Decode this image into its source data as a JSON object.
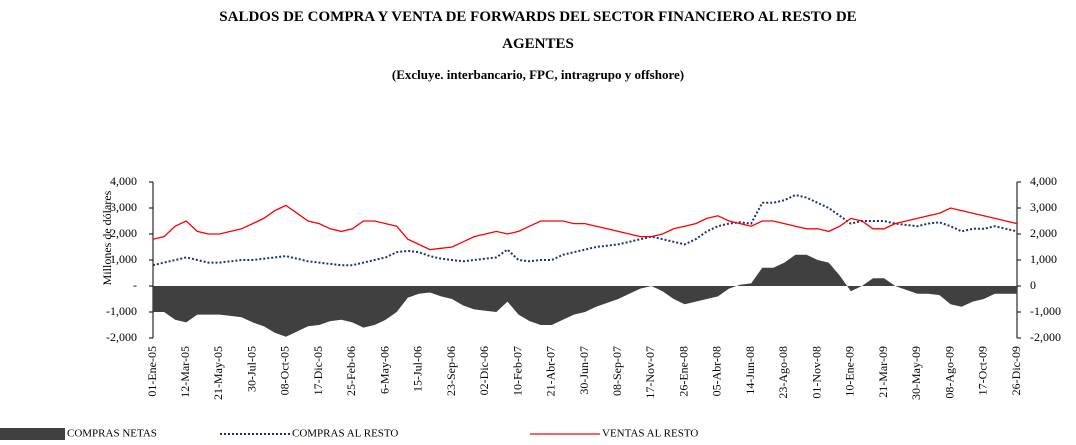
{
  "chart_data": {
    "type": "line",
    "title": "SALDOS DE COMPRA Y VENTA DE FORWARDS DEL SECTOR FINANCIERO AL RESTO DE AGENTES",
    "subtitle": "(Excluye. interbancario, FPC, intragrupo y offshore)",
    "y_label": "Millones de dólares",
    "categories": [
      "01-Ene-05",
      null,
      null,
      "12-Mar-05",
      null,
      null,
      "21-May-05",
      null,
      null,
      "30-Jul-05",
      null,
      null,
      "08-Oct-05",
      null,
      null,
      "17-Dic-05",
      null,
      null,
      "25-Feb-06",
      null,
      null,
      "6-May-06",
      null,
      null,
      "15-Jul-06",
      null,
      null,
      "23-Sep-06",
      null,
      null,
      "02-Dic-06",
      null,
      null,
      "10-Feb-07",
      null,
      null,
      "21-Abr-07",
      null,
      null,
      "30-Jun-07",
      null,
      null,
      "08-Sep-07",
      null,
      null,
      "17-Nov-07",
      null,
      null,
      "26-Ene-08",
      null,
      null,
      "05-Abr-08",
      null,
      null,
      "14-Jun-08",
      null,
      null,
      "23-Ago-08",
      null,
      null,
      "01-Nov-08",
      null,
      null,
      "10-Ene-09",
      null,
      null,
      "21-Mar-09",
      null,
      null,
      "30-May-09",
      null,
      null,
      "08-Ago-09",
      null,
      null,
      "17-Oct-09",
      null,
      null,
      "26-Dic-09"
    ],
    "series": [
      {
        "name": "COMPRAS NETAS",
        "kind": "area",
        "color": "#404040",
        "values": [
          -1000,
          -1000,
          -1300,
          -1400,
          -1100,
          -1100,
          -1100,
          -1150,
          -1200,
          -1400,
          -1550,
          -1800,
          -1950,
          -1750,
          -1550,
          -1500,
          -1350,
          -1300,
          -1400,
          -1600,
          -1500,
          -1300,
          -1000,
          -450,
          -300,
          -250,
          -400,
          -500,
          -750,
          -900,
          -950,
          -1000,
          -600,
          -1100,
          -1350,
          -1500,
          -1500,
          -1300,
          -1100,
          -1000,
          -800,
          -650,
          -500,
          -300,
          -100,
          0,
          -200,
          -500,
          -700,
          -600,
          -500,
          -400,
          -100,
          50,
          100,
          700,
          700,
          900,
          1200,
          1200,
          1000,
          900,
          400,
          -200,
          0,
          300,
          300,
          0,
          -150,
          -300,
          -300,
          -350,
          -700,
          -800,
          -600,
          -500,
          -300,
          -300,
          -300
        ]
      },
      {
        "name": "COMPRAS AL RESTO",
        "kind": "line",
        "dash": "dotted",
        "color": "#1f2f7a",
        "values": [
          800,
          900,
          1000,
          1100,
          1000,
          900,
          900,
          950,
          1000,
          1000,
          1050,
          1100,
          1150,
          1050,
          950,
          900,
          850,
          800,
          800,
          900,
          1000,
          1100,
          1300,
          1350,
          1300,
          1150,
          1050,
          1000,
          950,
          1000,
          1050,
          1100,
          1400,
          1000,
          950,
          1000,
          1000,
          1200,
          1300,
          1400,
          1500,
          1550,
          1600,
          1700,
          1800,
          1900,
          1800,
          1700,
          1600,
          1800,
          2100,
          2300,
          2400,
          2450,
          2400,
          3200,
          3200,
          3300,
          3500,
          3400,
          3200,
          3000,
          2700,
          2400,
          2500,
          2500,
          2500,
          2400,
          2350,
          2300,
          2400,
          2450,
          2300,
          2100,
          2200,
          2200,
          2300,
          2200,
          2100
        ]
      },
      {
        "name": "VENTAS AL RESTO",
        "kind": "line",
        "color": "#ff0000",
        "values": [
          1800,
          1900,
          2300,
          2500,
          2100,
          2000,
          2000,
          2100,
          2200,
          2400,
          2600,
          2900,
          3100,
          2800,
          2500,
          2400,
          2200,
          2100,
          2200,
          2500,
          2500,
          2400,
          2300,
          1800,
          1600,
          1400,
          1450,
          1500,
          1700,
          1900,
          2000,
          2100,
          2000,
          2100,
          2300,
          2500,
          2500,
          2500,
          2400,
          2400,
          2300,
          2200,
          2100,
          2000,
          1900,
          1900,
          2000,
          2200,
          2300,
          2400,
          2600,
          2700,
          2500,
          2400,
          2300,
          2500,
          2500,
          2400,
          2300,
          2200,
          2200,
          2100,
          2300,
          2600,
          2500,
          2200,
          2200,
          2400,
          2500,
          2600,
          2700,
          2800,
          3000,
          2900,
          2800,
          2700,
          2600,
          2500,
          2400
        ]
      }
    ],
    "ylim": [
      -2000,
      4000
    ],
    "yticks": [
      {
        "value": 4000,
        "label": "4,000"
      },
      {
        "value": 3000,
        "label": "3,000"
      },
      {
        "value": 2000,
        "label": "2,000"
      },
      {
        "value": 1000,
        "label": "1,000"
      },
      {
        "value": 0,
        "label": "-"
      },
      {
        "value": -1000,
        "label": "-1,000"
      },
      {
        "value": -2000,
        "label": "-2,000"
      }
    ],
    "y2lim": [
      -2000,
      4000
    ],
    "y2ticks": [
      {
        "value": 4000,
        "label": "4,000"
      },
      {
        "value": 3000,
        "label": "3,000"
      },
      {
        "value": 2000,
        "label": "2,000"
      },
      {
        "value": 1000,
        "label": "1,000"
      },
      0,
      {
        "value": -1000,
        "label": "-1,000"
      },
      {
        "value": -2000,
        "label": "-2,000"
      }
    ],
    "legend": "bottom"
  }
}
